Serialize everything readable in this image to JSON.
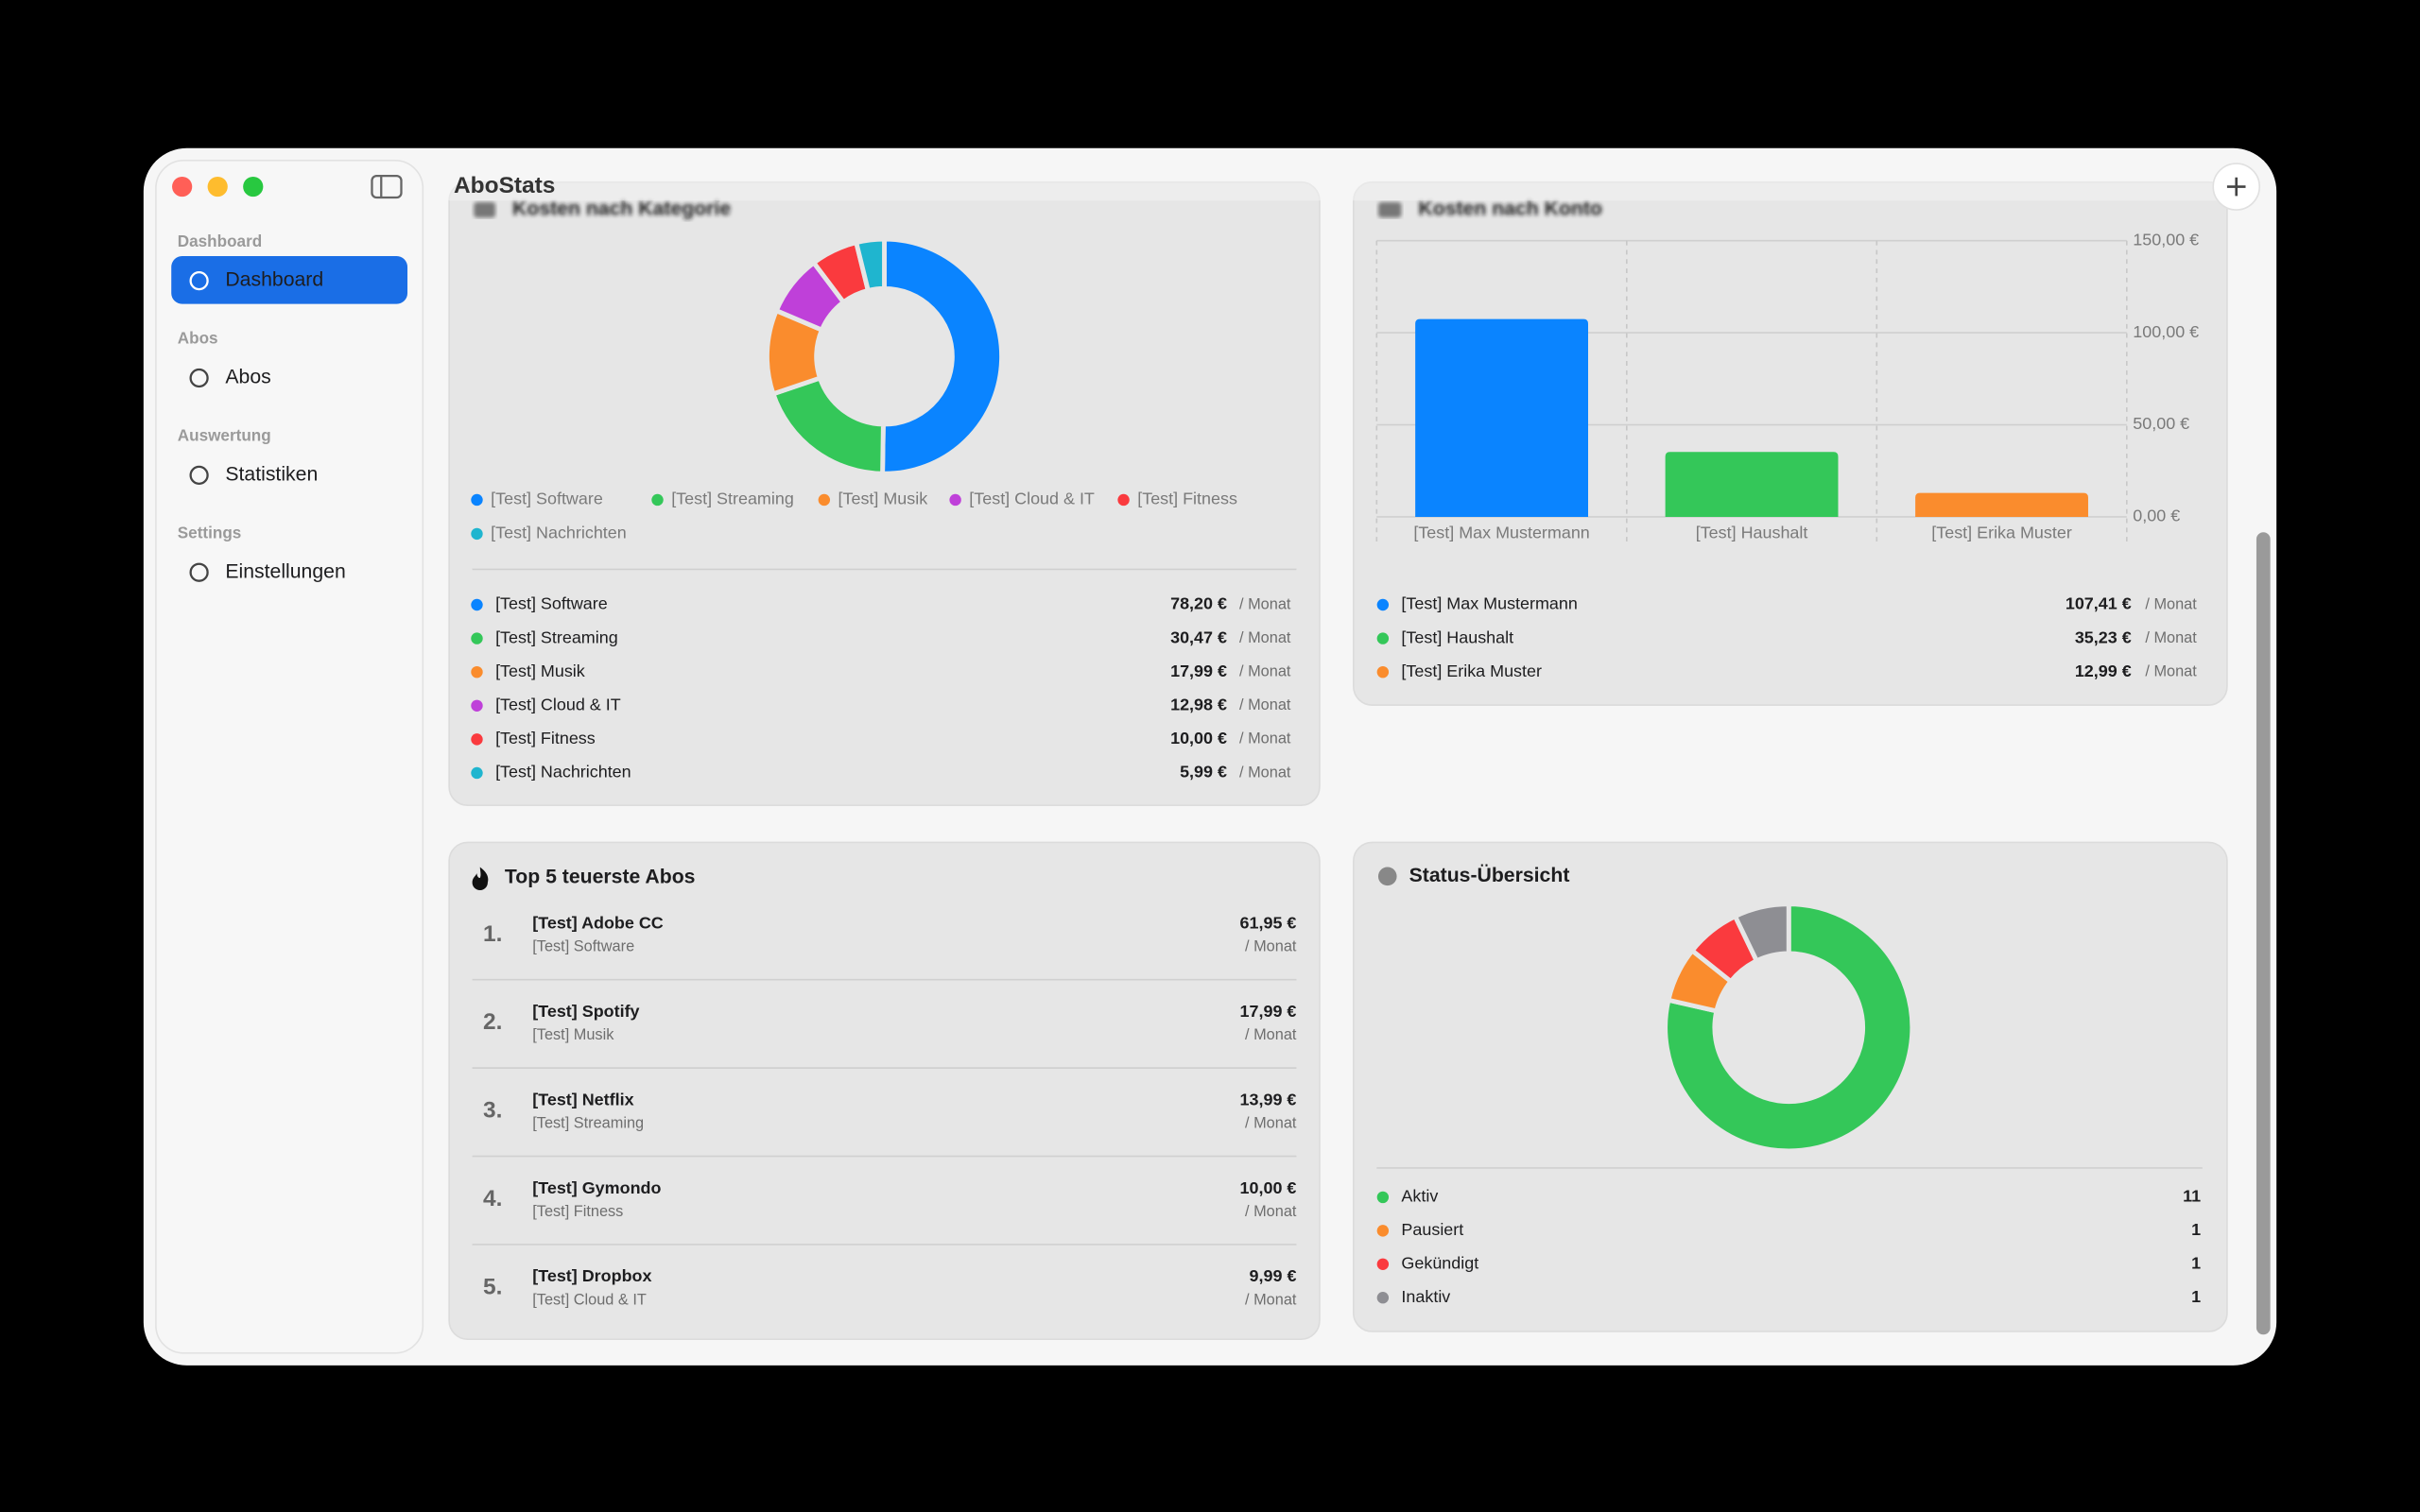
{
  "window": {
    "title": "AboStats"
  },
  "sidebar": {
    "sections": [
      {
        "header": "Dashboard",
        "items": [
          "Dashboard"
        ]
      },
      {
        "header": "Abos",
        "items": [
          "Abos"
        ]
      },
      {
        "header": "Auswertung",
        "items": [
          "Statistiken"
        ]
      },
      {
        "header": "Settings",
        "items": [
          "Einstellungen"
        ]
      }
    ]
  },
  "panels": {
    "category": {
      "title": "Kosten nach Kategorie",
      "type": "pie",
      "categories": [
        "[Test] Software",
        "[Test] Streaming",
        "[Test] Musik",
        "[Test] Cloud & IT",
        "[Test] Fitness",
        "[Test] Nachrichten"
      ],
      "values": [
        78.2,
        30.47,
        17.99,
        12.98,
        10.0,
        5.99
      ],
      "value_labels": [
        "78,20 €",
        "30,47 €",
        "17,99 €",
        "12,98 €",
        "10,00 €",
        "5,99 €"
      ],
      "colors": [
        "#0a84ff",
        "#34c759",
        "#fa8c2d",
        "#bf40d9",
        "#fa3a3e",
        "#1fb5cf"
      ],
      "period": "/ Monat"
    },
    "account": {
      "title": "Kosten nach Konto",
      "type": "bar",
      "categories": [
        "[Test] Max Mustermann",
        "[Test] Haushalt",
        "[Test] Erika Muster"
      ],
      "values": [
        107.41,
        35.23,
        12.99
      ],
      "value_labels": [
        "107,41 €",
        "35,23 €",
        "12,99 €"
      ],
      "colors": [
        "#0a84ff",
        "#34c759",
        "#fa8c2d"
      ],
      "ylim": [
        0,
        150
      ],
      "yticks": [
        {
          "value": 0,
          "label": "0,00 €"
        },
        {
          "value": 50,
          "label": "50,00 €"
        },
        {
          "value": 100,
          "label": "100,00 €"
        },
        {
          "value": 150,
          "label": "150,00 €"
        }
      ],
      "grid": true,
      "period": "/ Monat"
    },
    "top": {
      "title": "Top 5 teuerste Abos",
      "rows": [
        {
          "rank": "1.",
          "name": "[Test] Adobe CC",
          "category": "[Test] Software",
          "price": "61,95 €"
        },
        {
          "rank": "2.",
          "name": "[Test] Spotify",
          "category": "[Test] Musik",
          "price": "17,99 €"
        },
        {
          "rank": "3.",
          "name": "[Test] Netflix",
          "category": "[Test] Streaming",
          "price": "13,99 €"
        },
        {
          "rank": "4.",
          "name": "[Test] Gymondo",
          "category": "[Test] Fitness",
          "price": "10,00 €"
        },
        {
          "rank": "5.",
          "name": "[Test] Dropbox",
          "category": "[Test] Cloud & IT",
          "price": "9,99 €"
        }
      ],
      "period": "/ Monat"
    },
    "status": {
      "title": "Status-Übersicht",
      "type": "pie",
      "categories": [
        "Aktiv",
        "Pausiert",
        "Gekündigt",
        "Inaktiv"
      ],
      "values": [
        11,
        1,
        1,
        1
      ],
      "colors": [
        "#34c759",
        "#fa8c2d",
        "#fa3a3e",
        "#8e8e93"
      ]
    }
  }
}
